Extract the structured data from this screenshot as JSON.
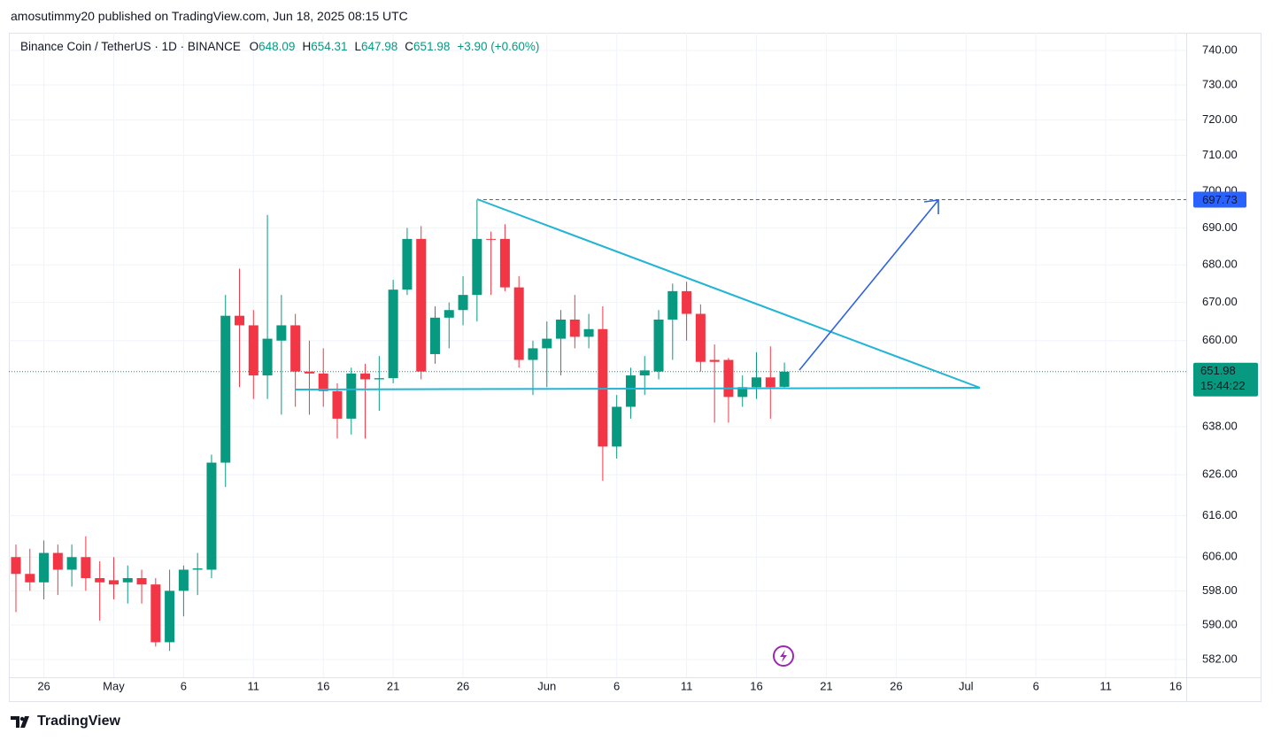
{
  "header": {
    "publisher": "amosutimmy20 published on TradingView.com, Jun 18, 2025 08:15 UTC"
  },
  "footer": {
    "brand": "TradingView"
  },
  "chart_data": {
    "type": "candlestick",
    "symbol": "Binance Coin / TetherUS · 1D · BINANCE",
    "ohlc_prefixes": [
      "O",
      "H",
      "L",
      "C"
    ],
    "change_label": "+3.90 (+0.60%)",
    "x": [
      "2025-04-24",
      "2025-04-25",
      "2025-04-26",
      "2025-04-27",
      "2025-04-28",
      "2025-04-29",
      "2025-04-30",
      "2025-05-01",
      "2025-05-02",
      "2025-05-03",
      "2025-05-04",
      "2025-05-05",
      "2025-05-06",
      "2025-05-07",
      "2025-05-08",
      "2025-05-09",
      "2025-05-10",
      "2025-05-11",
      "2025-05-12",
      "2025-05-13",
      "2025-05-14",
      "2025-05-15",
      "2025-05-16",
      "2025-05-17",
      "2025-05-18",
      "2025-05-19",
      "2025-05-20",
      "2025-05-21",
      "2025-05-22",
      "2025-05-23",
      "2025-05-24",
      "2025-05-25",
      "2025-05-26",
      "2025-05-27",
      "2025-05-28",
      "2025-05-29",
      "2025-05-30",
      "2025-05-31",
      "2025-06-01",
      "2025-06-02",
      "2025-06-03",
      "2025-06-04",
      "2025-06-05",
      "2025-06-06",
      "2025-06-07",
      "2025-06-08",
      "2025-06-09",
      "2025-06-10",
      "2025-06-11",
      "2025-06-12",
      "2025-06-13",
      "2025-06-14",
      "2025-06-15",
      "2025-06-16",
      "2025-06-17",
      "2025-06-18"
    ],
    "open": [
      606,
      602,
      600,
      607,
      603,
      606,
      601,
      600.5,
      600,
      601,
      599.5,
      586,
      598,
      603,
      603,
      629,
      666.5,
      664,
      651,
      660,
      664,
      652,
      651.5,
      647,
      640,
      651.5,
      650,
      650.3,
      673.4,
      687,
      656.5,
      666,
      668,
      672,
      687,
      687,
      674,
      655,
      658,
      660.5,
      665.5,
      661,
      663,
      633,
      643,
      651,
      652,
      665.5,
      673,
      667,
      655,
      655,
      645.5,
      648,
      650.5,
      648.09
    ],
    "high": [
      609,
      608,
      610,
      609,
      609,
      611,
      605,
      606,
      604,
      603,
      601,
      603,
      604,
      607,
      631,
      672,
      679,
      668,
      693.5,
      672,
      667,
      660,
      658,
      649,
      653,
      654,
      656,
      676,
      690,
      690.5,
      669,
      670,
      677,
      697.7,
      689,
      691,
      677,
      660,
      665,
      668,
      672,
      667,
      669,
      646,
      653,
      656,
      668,
      675,
      675.5,
      669.5,
      659,
      655.5,
      651,
      657,
      658.5,
      654.31
    ],
    "low": [
      593,
      598,
      596,
      597,
      599,
      598,
      591,
      596,
      595,
      595,
      585,
      584,
      592,
      597,
      601,
      623,
      648,
      645,
      645,
      641,
      643,
      641,
      643,
      635,
      636,
      635,
      642,
      649,
      672,
      650,
      654,
      658,
      664,
      665,
      672,
      673,
      653,
      646,
      648,
      651,
      658,
      658,
      624.5,
      630,
      640,
      646,
      650,
      655,
      660,
      652,
      639,
      639,
      643,
      645,
      640,
      647.98
    ],
    "close": [
      602,
      600,
      607,
      603,
      606,
      601,
      600,
      599.5,
      601,
      599.5,
      586,
      598,
      603,
      603.3,
      629,
      666.5,
      664,
      651,
      660.5,
      664,
      652,
      651.5,
      647,
      640,
      651.5,
      650,
      650.3,
      673.4,
      687,
      652,
      666,
      668,
      672,
      687,
      686.8,
      674,
      655,
      658,
      660.5,
      665.5,
      661,
      663,
      633,
      643,
      651,
      652.3,
      665.5,
      673,
      667,
      654.5,
      654.5,
      645.5,
      648,
      650.5,
      648,
      651.98
    ],
    "up_color": "#089981",
    "down_color": "#f23645",
    "log_scale": true,
    "grid": true,
    "ylim": [
      578,
      745
    ],
    "yticks": [
      {
        "value": 582,
        "label": "582.00"
      },
      {
        "value": 590,
        "label": "590.00"
      },
      {
        "value": 598,
        "label": "598.00"
      },
      {
        "value": 606,
        "label": "606.00"
      },
      {
        "value": 616,
        "label": "616.00"
      },
      {
        "value": 626,
        "label": "626.00"
      },
      {
        "value": 638,
        "label": "638.00"
      },
      {
        "value": 660,
        "label": "660.00"
      },
      {
        "value": 670,
        "label": "670.00"
      },
      {
        "value": 680,
        "label": "680.00"
      },
      {
        "value": 690,
        "label": "690.00"
      },
      {
        "value": 700,
        "label": "700.00"
      },
      {
        "value": 710,
        "label": "710.00"
      },
      {
        "value": 720,
        "label": "720.00"
      },
      {
        "value": 730,
        "label": "730.00"
      },
      {
        "value": 740,
        "label": "740.00"
      }
    ],
    "xlim": [
      "2025-04-23",
      "2025-07-17"
    ],
    "xticks": [
      {
        "value": "2025-04-26",
        "label": "26"
      },
      {
        "value": "2025-05-01",
        "label": "May"
      },
      {
        "value": "2025-05-06",
        "label": "6"
      },
      {
        "value": "2025-05-11",
        "label": "11"
      },
      {
        "value": "2025-05-16",
        "label": "16"
      },
      {
        "value": "2025-05-21",
        "label": "21"
      },
      {
        "value": "2025-05-26",
        "label": "26"
      },
      {
        "value": "2025-06-01",
        "label": "Jun"
      },
      {
        "value": "2025-06-06",
        "label": "6"
      },
      {
        "value": "2025-06-11",
        "label": "11"
      },
      {
        "value": "2025-06-16",
        "label": "16"
      },
      {
        "value": "2025-06-21",
        "label": "21"
      },
      {
        "value": "2025-06-26",
        "label": "26"
      },
      {
        "value": "2025-07-01",
        "label": "Jul"
      },
      {
        "value": "2025-07-06",
        "label": "6"
      },
      {
        "value": "2025-07-11",
        "label": "11"
      },
      {
        "value": "2025-07-16",
        "label": "16"
      }
    ],
    "target_price": 697.73,
    "target_color": "#2962ff",
    "countdown": "15:44:22"
  }
}
